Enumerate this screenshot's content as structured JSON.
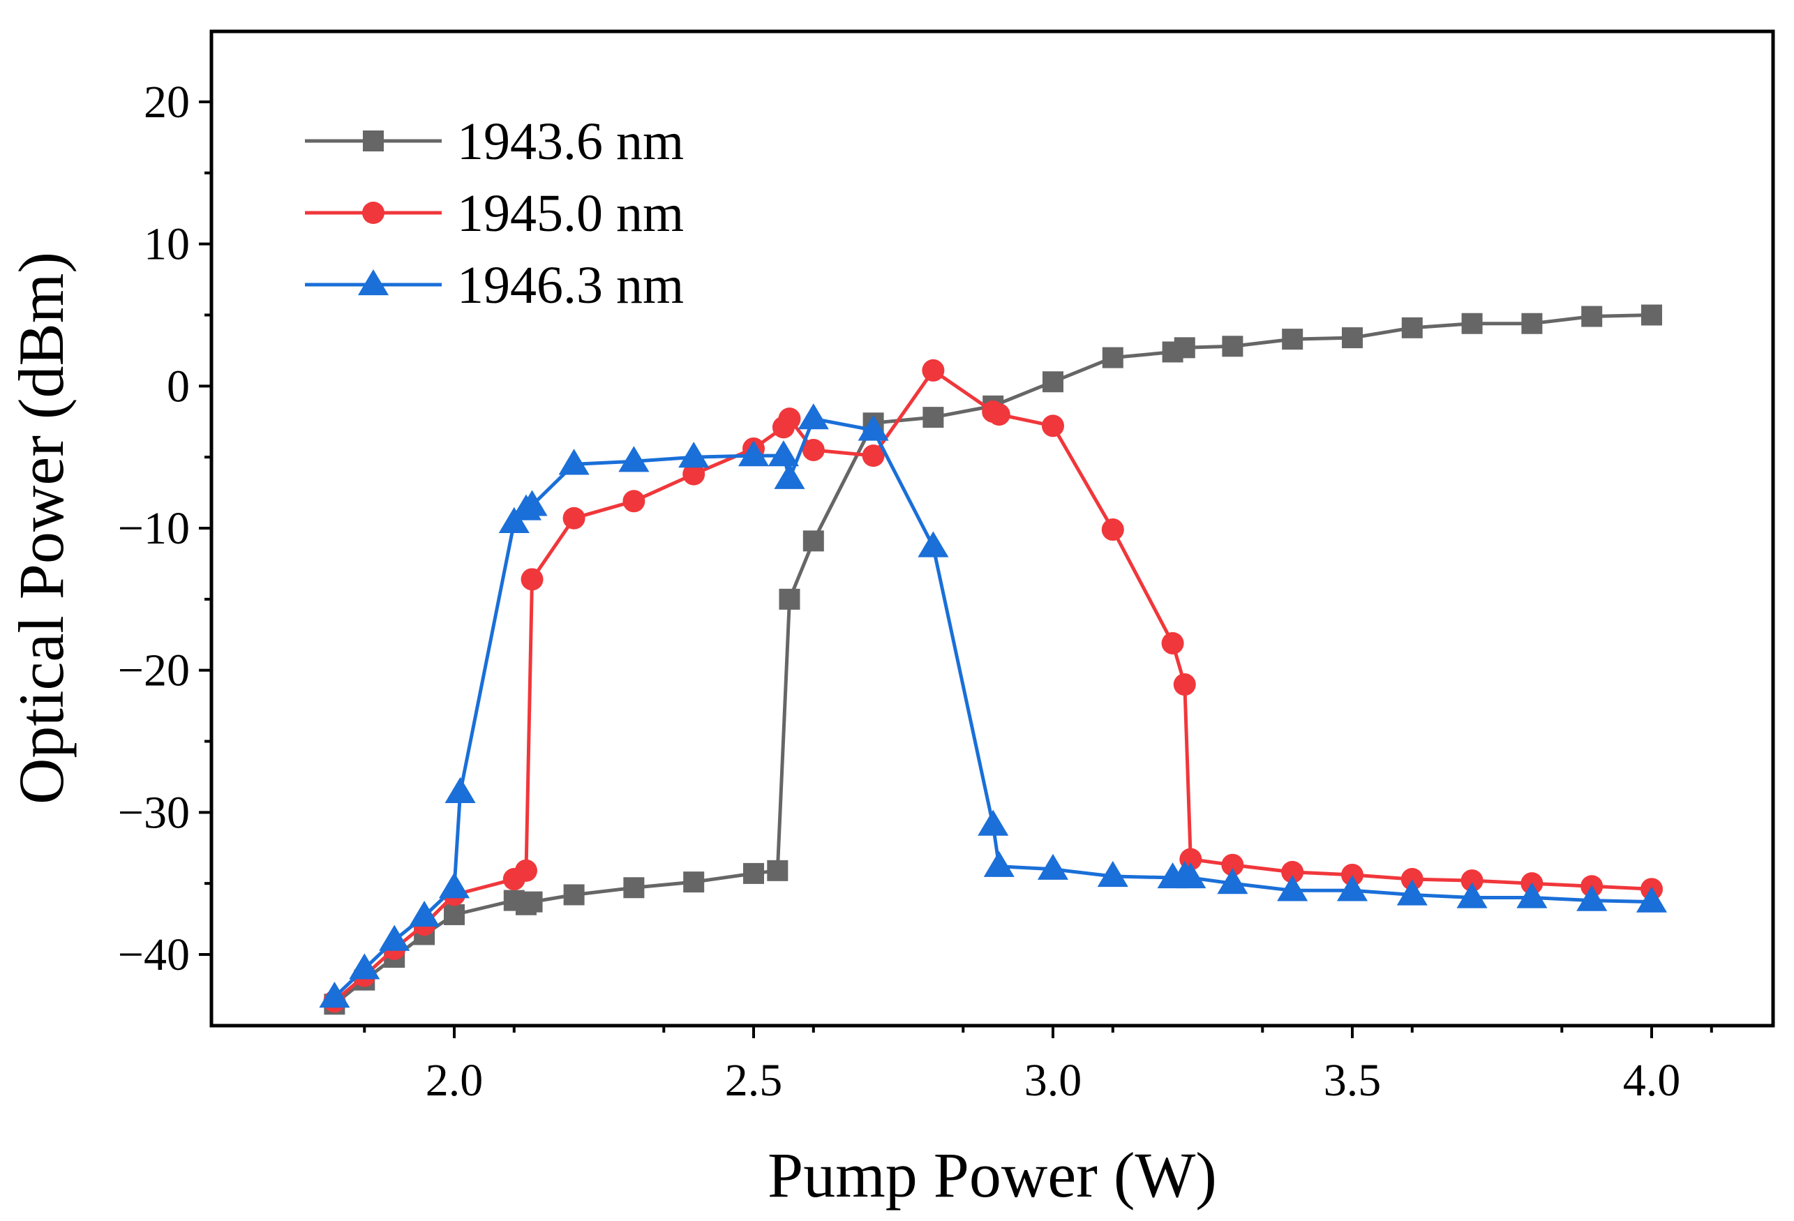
{
  "chart_data": {
    "type": "line",
    "title": "",
    "xlabel": "Pump Power (W)",
    "ylabel": "Optical Power (dBm)",
    "xlim": [
      1.6,
      4.2
    ],
    "ylim": [
      -45,
      25
    ],
    "x_ticks": [
      2.0,
      2.5,
      3.0,
      3.5,
      4.0
    ],
    "x_tick_labels": [
      "2.0",
      "2.5",
      "3.0",
      "3.5",
      "4.0"
    ],
    "y_ticks": [
      -40,
      -30,
      -20,
      -10,
      0,
      10,
      20
    ],
    "y_tick_labels": [
      "−40",
      "−30",
      "−20",
      "−10",
      "0",
      "10",
      "20"
    ],
    "grid": false,
    "legend_position": "top-left",
    "series": [
      {
        "name": "1943.6 nm",
        "marker": "square",
        "color": "#666666",
        "x": [
          1.8,
          1.85,
          1.9,
          1.95,
          2.0,
          2.1,
          2.12,
          2.13,
          2.2,
          2.3,
          2.4,
          2.5,
          2.54,
          2.56,
          2.6,
          2.7,
          2.8,
          2.9,
          3.0,
          3.1,
          3.2,
          3.22,
          3.3,
          3.4,
          3.5,
          3.6,
          3.7,
          3.8,
          3.9,
          4.0
        ],
        "y": [
          -43.5,
          -41.8,
          -40.2,
          -38.6,
          -37.2,
          -36.2,
          -36.5,
          -36.3,
          -35.8,
          -35.3,
          -34.9,
          -34.3,
          -34.1,
          -15.0,
          -10.9,
          -2.6,
          -2.2,
          -1.4,
          0.3,
          2.0,
          2.4,
          2.7,
          2.8,
          3.3,
          3.4,
          4.1,
          4.4,
          4.4,
          4.9,
          5.0
        ]
      },
      {
        "name": "1945.0 nm",
        "marker": "circle",
        "color": "#f0373b",
        "x": [
          1.8,
          1.85,
          1.9,
          1.95,
          2.0,
          2.1,
          2.12,
          2.13,
          2.2,
          2.3,
          2.4,
          2.5,
          2.55,
          2.56,
          2.6,
          2.7,
          2.8,
          2.9,
          2.91,
          3.0,
          3.1,
          3.2,
          3.22,
          3.23,
          3.3,
          3.4,
          3.5,
          3.6,
          3.7,
          3.8,
          3.9,
          4.0
        ],
        "y": [
          -43.3,
          -41.5,
          -39.6,
          -37.9,
          -35.8,
          -34.7,
          -34.1,
          -13.6,
          -9.3,
          -8.1,
          -6.2,
          -4.4,
          -2.9,
          -2.3,
          -4.5,
          -4.9,
          1.1,
          -1.8,
          -2.0,
          -2.8,
          -10.1,
          -18.1,
          -21.0,
          -33.3,
          -33.7,
          -34.2,
          -34.4,
          -34.7,
          -34.8,
          -35.0,
          -35.2,
          -35.4
        ]
      },
      {
        "name": "1946.3 nm",
        "marker": "triangle",
        "color": "#1a6fd8",
        "x": [
          1.8,
          1.85,
          1.9,
          1.95,
          2.0,
          2.01,
          2.1,
          2.12,
          2.13,
          2.2,
          2.3,
          2.4,
          2.5,
          2.55,
          2.56,
          2.6,
          2.7,
          2.8,
          2.9,
          2.91,
          3.0,
          3.1,
          3.2,
          3.22,
          3.23,
          3.3,
          3.4,
          3.5,
          3.6,
          3.7,
          3.8,
          3.9,
          4.0
        ],
        "y": [
          -43.0,
          -41.0,
          -39.0,
          -37.3,
          -35.3,
          -28.6,
          -9.6,
          -8.7,
          -8.4,
          -5.5,
          -5.3,
          -5.0,
          -4.9,
          -4.9,
          -6.5,
          -2.3,
          -3.1,
          -11.3,
          -30.9,
          -33.8,
          -34.0,
          -34.5,
          -34.6,
          -34.5,
          -34.6,
          -35.0,
          -35.5,
          -35.5,
          -35.8,
          -36.0,
          -36.0,
          -36.2,
          -36.3
        ]
      }
    ]
  }
}
